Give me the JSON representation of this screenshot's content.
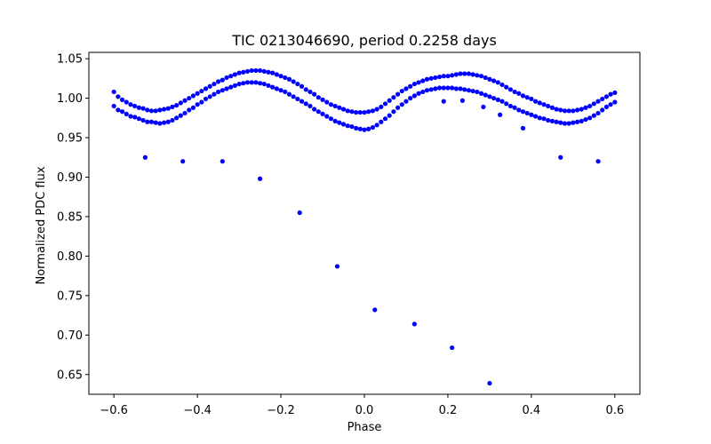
{
  "chart_data": {
    "type": "scatter",
    "title": "TIC 0213046690, period 0.2258 days",
    "xlabel": "Phase",
    "ylabel": "Normalized PDC flux",
    "xlim": [
      -0.66,
      0.66
    ],
    "ylim": [
      0.625,
      1.058
    ],
    "grid": false,
    "legend": "none",
    "marker_color": "#0000ff",
    "x_ticks": [
      {
        "value": -0.6,
        "label": "−0.6"
      },
      {
        "value": -0.4,
        "label": "−0.4"
      },
      {
        "value": -0.2,
        "label": "−0.2"
      },
      {
        "value": 0.0,
        "label": "0.0"
      },
      {
        "value": 0.2,
        "label": "0.2"
      },
      {
        "value": 0.4,
        "label": "0.4"
      },
      {
        "value": 0.6,
        "label": "0.6"
      }
    ],
    "y_ticks": [
      {
        "value": 0.65,
        "label": "0.65"
      },
      {
        "value": 0.7,
        "label": "0.70"
      },
      {
        "value": 0.75,
        "label": "0.75"
      },
      {
        "value": 0.8,
        "label": "0.80"
      },
      {
        "value": 0.85,
        "label": "0.85"
      },
      {
        "value": 0.9,
        "label": "0.90"
      },
      {
        "value": 0.95,
        "label": "0.95"
      },
      {
        "value": 1.0,
        "label": "1.00"
      },
      {
        "value": 1.05,
        "label": "1.05"
      }
    ],
    "series": [
      {
        "points": [
          [
            -0.6,
            1.008
          ],
          [
            -0.6,
            0.99
          ],
          [
            -0.59,
            1.002
          ],
          [
            -0.59,
            0.985
          ],
          [
            -0.58,
            0.998
          ],
          [
            -0.58,
            0.983
          ],
          [
            -0.57,
            0.995
          ],
          [
            -0.57,
            0.98
          ],
          [
            -0.56,
            0.992
          ],
          [
            -0.56,
            0.977
          ],
          [
            -0.55,
            0.99
          ],
          [
            -0.55,
            0.976
          ],
          [
            -0.54,
            0.988
          ],
          [
            -0.54,
            0.974
          ],
          [
            -0.53,
            0.987
          ],
          [
            -0.53,
            0.972
          ],
          [
            -0.52,
            0.985
          ],
          [
            -0.52,
            0.97
          ],
          [
            -0.51,
            0.984
          ],
          [
            -0.51,
            0.97
          ],
          [
            -0.5,
            0.984
          ],
          [
            -0.5,
            0.969
          ],
          [
            -0.49,
            0.985
          ],
          [
            -0.49,
            0.968
          ],
          [
            -0.48,
            0.986
          ],
          [
            -0.48,
            0.969
          ],
          [
            -0.47,
            0.987
          ],
          [
            -0.47,
            0.97
          ],
          [
            -0.46,
            0.989
          ],
          [
            -0.46,
            0.972
          ],
          [
            -0.45,
            0.991
          ],
          [
            -0.45,
            0.975
          ],
          [
            -0.44,
            0.994
          ],
          [
            -0.44,
            0.978
          ],
          [
            -0.43,
            0.997
          ],
          [
            -0.43,
            0.981
          ],
          [
            -0.42,
            1.0
          ],
          [
            -0.42,
            0.985
          ],
          [
            -0.41,
            1.003
          ],
          [
            -0.41,
            0.988
          ],
          [
            -0.4,
            1.006
          ],
          [
            -0.4,
            0.992
          ],
          [
            -0.39,
            1.009
          ],
          [
            -0.39,
            0.995
          ],
          [
            -0.38,
            1.012
          ],
          [
            -0.38,
            0.999
          ],
          [
            -0.37,
            1.015
          ],
          [
            -0.37,
            1.002
          ],
          [
            -0.36,
            1.018
          ],
          [
            -0.36,
            1.005
          ],
          [
            -0.35,
            1.021
          ],
          [
            -0.35,
            1.008
          ],
          [
            -0.34,
            1.023
          ],
          [
            -0.34,
            1.01
          ],
          [
            -0.33,
            1.026
          ],
          [
            -0.33,
            1.012
          ],
          [
            -0.32,
            1.028
          ],
          [
            -0.32,
            1.014
          ],
          [
            -0.31,
            1.03
          ],
          [
            -0.31,
            1.016
          ],
          [
            -0.3,
            1.032
          ],
          [
            -0.3,
            1.018
          ],
          [
            -0.29,
            1.033
          ],
          [
            -0.29,
            1.019
          ],
          [
            -0.28,
            1.034
          ],
          [
            -0.28,
            1.02
          ],
          [
            -0.27,
            1.035
          ],
          [
            -0.27,
            1.02
          ],
          [
            -0.26,
            1.035
          ],
          [
            -0.26,
            1.02
          ],
          [
            -0.25,
            1.035
          ],
          [
            -0.25,
            1.019
          ],
          [
            -0.24,
            1.034
          ],
          [
            -0.24,
            1.018
          ],
          [
            -0.23,
            1.033
          ],
          [
            -0.23,
            1.016
          ],
          [
            -0.22,
            1.032
          ],
          [
            -0.22,
            1.014
          ],
          [
            -0.21,
            1.03
          ],
          [
            -0.21,
            1.012
          ],
          [
            -0.2,
            1.028
          ],
          [
            -0.2,
            1.01
          ],
          [
            -0.19,
            1.026
          ],
          [
            -0.19,
            1.008
          ],
          [
            -0.18,
            1.024
          ],
          [
            -0.18,
            1.005
          ],
          [
            -0.17,
            1.021
          ],
          [
            -0.17,
            1.002
          ],
          [
            -0.16,
            1.018
          ],
          [
            -0.16,
            0.999
          ],
          [
            -0.15,
            1.015
          ],
          [
            -0.15,
            0.996
          ],
          [
            -0.14,
            1.011
          ],
          [
            -0.14,
            0.993
          ],
          [
            -0.13,
            1.008
          ],
          [
            -0.13,
            0.99
          ],
          [
            -0.12,
            1.005
          ],
          [
            -0.12,
            0.986
          ],
          [
            -0.11,
            1.001
          ],
          [
            -0.11,
            0.983
          ],
          [
            -0.1,
            0.998
          ],
          [
            -0.1,
            0.98
          ],
          [
            -0.09,
            0.995
          ],
          [
            -0.09,
            0.977
          ],
          [
            -0.08,
            0.992
          ],
          [
            -0.08,
            0.974
          ],
          [
            -0.07,
            0.99
          ],
          [
            -0.07,
            0.971
          ],
          [
            -0.06,
            0.988
          ],
          [
            -0.06,
            0.969
          ],
          [
            -0.05,
            0.986
          ],
          [
            -0.05,
            0.967
          ],
          [
            -0.04,
            0.984
          ],
          [
            -0.04,
            0.965
          ],
          [
            -0.03,
            0.983
          ],
          [
            -0.03,
            0.964
          ],
          [
            -0.02,
            0.982
          ],
          [
            -0.02,
            0.962
          ],
          [
            -0.01,
            0.982
          ],
          [
            -0.01,
            0.961
          ],
          [
            0.0,
            0.982
          ],
          [
            0.0,
            0.96
          ],
          [
            0.01,
            0.983
          ],
          [
            0.01,
            0.961
          ],
          [
            0.02,
            0.984
          ],
          [
            0.02,
            0.963
          ],
          [
            0.03,
            0.986
          ],
          [
            0.03,
            0.966
          ],
          [
            0.04,
            0.989
          ],
          [
            0.04,
            0.97
          ],
          [
            0.05,
            0.993
          ],
          [
            0.05,
            0.974
          ],
          [
            0.06,
            0.997
          ],
          [
            0.06,
            0.978
          ],
          [
            0.07,
            1.001
          ],
          [
            0.07,
            0.983
          ],
          [
            0.08,
            1.005
          ],
          [
            0.08,
            0.988
          ],
          [
            0.09,
            1.009
          ],
          [
            0.09,
            0.992
          ],
          [
            0.1,
            1.012
          ],
          [
            0.1,
            0.996
          ],
          [
            0.11,
            1.015
          ],
          [
            0.11,
            1.0
          ],
          [
            0.12,
            1.018
          ],
          [
            0.12,
            1.003
          ],
          [
            0.13,
            1.02
          ],
          [
            0.13,
            1.006
          ],
          [
            0.14,
            1.022
          ],
          [
            0.14,
            1.008
          ],
          [
            0.15,
            1.024
          ],
          [
            0.15,
            1.01
          ],
          [
            0.16,
            1.025
          ],
          [
            0.16,
            1.011
          ],
          [
            0.17,
            1.026
          ],
          [
            0.17,
            1.012
          ],
          [
            0.18,
            1.027
          ],
          [
            0.18,
            1.013
          ],
          [
            0.19,
            1.028
          ],
          [
            0.19,
            1.013
          ],
          [
            0.2,
            1.028
          ],
          [
            0.2,
            1.013
          ],
          [
            0.21,
            1.029
          ],
          [
            0.21,
            1.013
          ],
          [
            0.22,
            1.03
          ],
          [
            0.22,
            1.012
          ],
          [
            0.23,
            1.031
          ],
          [
            0.23,
            1.012
          ],
          [
            0.24,
            1.031
          ],
          [
            0.24,
            1.011
          ],
          [
            0.25,
            1.031
          ],
          [
            0.25,
            1.01
          ],
          [
            0.26,
            1.03
          ],
          [
            0.26,
            1.009
          ],
          [
            0.27,
            1.029
          ],
          [
            0.27,
            1.008
          ],
          [
            0.28,
            1.028
          ],
          [
            0.28,
            1.006
          ],
          [
            0.29,
            1.026
          ],
          [
            0.29,
            1.004
          ],
          [
            0.3,
            1.024
          ],
          [
            0.3,
            1.002
          ],
          [
            0.31,
            1.022
          ],
          [
            0.31,
            1.0
          ],
          [
            0.32,
            1.02
          ],
          [
            0.32,
            0.998
          ],
          [
            0.33,
            1.017
          ],
          [
            0.33,
            0.996
          ],
          [
            0.34,
            1.014
          ],
          [
            0.34,
            0.993
          ],
          [
            0.35,
            1.011
          ],
          [
            0.35,
            0.99
          ],
          [
            0.36,
            1.008
          ],
          [
            0.36,
            0.988
          ],
          [
            0.37,
            1.006
          ],
          [
            0.37,
            0.985
          ],
          [
            0.38,
            1.003
          ],
          [
            0.38,
            0.983
          ],
          [
            0.39,
            1.001
          ],
          [
            0.39,
            0.981
          ],
          [
            0.4,
            0.999
          ],
          [
            0.4,
            0.979
          ],
          [
            0.41,
            0.996
          ],
          [
            0.41,
            0.977
          ],
          [
            0.42,
            0.994
          ],
          [
            0.42,
            0.975
          ],
          [
            0.43,
            0.992
          ],
          [
            0.43,
            0.974
          ],
          [
            0.44,
            0.99
          ],
          [
            0.44,
            0.972
          ],
          [
            0.45,
            0.988
          ],
          [
            0.45,
            0.971
          ],
          [
            0.46,
            0.986
          ],
          [
            0.46,
            0.97
          ],
          [
            0.47,
            0.985
          ],
          [
            0.47,
            0.969
          ],
          [
            0.48,
            0.984
          ],
          [
            0.48,
            0.968
          ],
          [
            0.49,
            0.984
          ],
          [
            0.49,
            0.968
          ],
          [
            0.5,
            0.984
          ],
          [
            0.5,
            0.969
          ],
          [
            0.51,
            0.985
          ],
          [
            0.51,
            0.97
          ],
          [
            0.52,
            0.986
          ],
          [
            0.52,
            0.971
          ],
          [
            0.53,
            0.988
          ],
          [
            0.53,
            0.973
          ],
          [
            0.54,
            0.99
          ],
          [
            0.54,
            0.975
          ],
          [
            0.55,
            0.993
          ],
          [
            0.55,
            0.978
          ],
          [
            0.56,
            0.996
          ],
          [
            0.56,
            0.981
          ],
          [
            0.57,
            0.999
          ],
          [
            0.57,
            0.985
          ],
          [
            0.58,
            1.002
          ],
          [
            0.58,
            0.989
          ],
          [
            0.59,
            1.005
          ],
          [
            0.59,
            0.992
          ],
          [
            0.6,
            1.007
          ],
          [
            0.6,
            0.995
          ],
          [
            -0.525,
            0.925
          ],
          [
            -0.435,
            0.92
          ],
          [
            -0.34,
            0.92
          ],
          [
            -0.25,
            0.898
          ],
          [
            -0.155,
            0.855
          ],
          [
            -0.065,
            0.787
          ],
          [
            0.025,
            0.732
          ],
          [
            0.12,
            0.714
          ],
          [
            0.21,
            0.684
          ],
          [
            0.3,
            0.639
          ],
          [
            0.19,
            0.996
          ],
          [
            0.235,
            0.997
          ],
          [
            0.285,
            0.989
          ],
          [
            0.325,
            0.979
          ],
          [
            0.38,
            0.962
          ],
          [
            0.47,
            0.925
          ],
          [
            0.56,
            0.92
          ]
        ]
      }
    ]
  }
}
